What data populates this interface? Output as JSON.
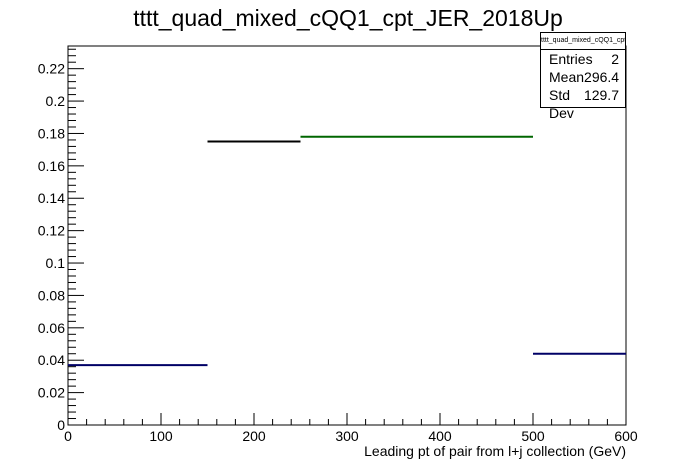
{
  "chart_data": {
    "type": "histogram",
    "title": "tttt_quad_mixed_cQQ1_cpt_JER_2018Up",
    "xlabel": "Leading pt of pair from l+j collection (GeV)",
    "ylabel": "",
    "xlim": [
      0,
      600
    ],
    "ylim": [
      0,
      0.234
    ],
    "x_ticks": [
      "0",
      "100",
      "200",
      "300",
      "400",
      "500",
      "600"
    ],
    "y_ticks": [
      "0",
      "0.02",
      "0.04",
      "0.06",
      "0.08",
      "0.1",
      "0.12",
      "0.14",
      "0.16",
      "0.18",
      "0.2",
      "0.22"
    ],
    "bins": [
      {
        "x0": 0,
        "x1": 150,
        "value": 0.037,
        "color": "#000066"
      },
      {
        "x0": 150,
        "x1": 250,
        "value": 0.175,
        "color": "#000000"
      },
      {
        "x0": 250,
        "x1": 500,
        "value": 0.178,
        "color": "#006600"
      },
      {
        "x0": 500,
        "x1": 600,
        "value": 0.044,
        "color": "#000066"
      }
    ],
    "grid": false,
    "legend_position": "top-right"
  },
  "stats_box": {
    "name": "tttt_quad_mixed_cQQ1_cpt_JER_2018Up",
    "entries_label": "Entries",
    "entries_value": "2",
    "mean_label": "Mean",
    "mean_value": "296.4",
    "std_label": "Std Dev",
    "std_value": "129.7"
  }
}
